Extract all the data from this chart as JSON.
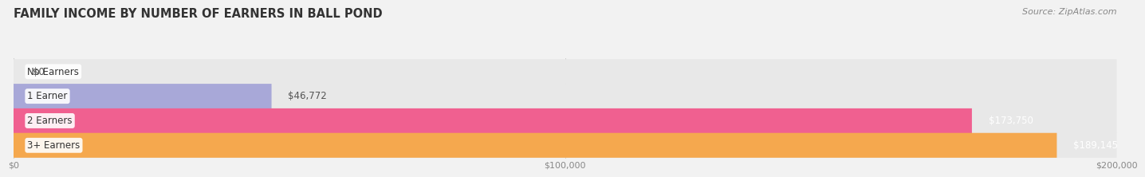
{
  "title": "FAMILY INCOME BY NUMBER OF EARNERS IN BALL POND",
  "source_text": "Source: ZipAtlas.com",
  "categories": [
    "No Earners",
    "1 Earner",
    "2 Earners",
    "3+ Earners"
  ],
  "values": [
    0,
    46772,
    173750,
    189145
  ],
  "bar_colors": [
    "#5ecfcc",
    "#a8a8d8",
    "#f06090",
    "#f5a84e"
  ],
  "value_labels": [
    "$0",
    "$46,772",
    "$173,750",
    "$189,145"
  ],
  "xlim": [
    0,
    200000
  ],
  "xticks": [
    0,
    100000,
    200000
  ],
  "xtick_labels": [
    "$0",
    "$100,000",
    "$200,000"
  ],
  "background_color": "#f2f2f2",
  "bar_background_color": "#e8e8e8",
  "title_fontsize": 10.5,
  "label_fontsize": 8.5,
  "tick_fontsize": 8,
  "source_fontsize": 8,
  "bar_height": 0.52,
  "value_label_color_threshold": 120000
}
